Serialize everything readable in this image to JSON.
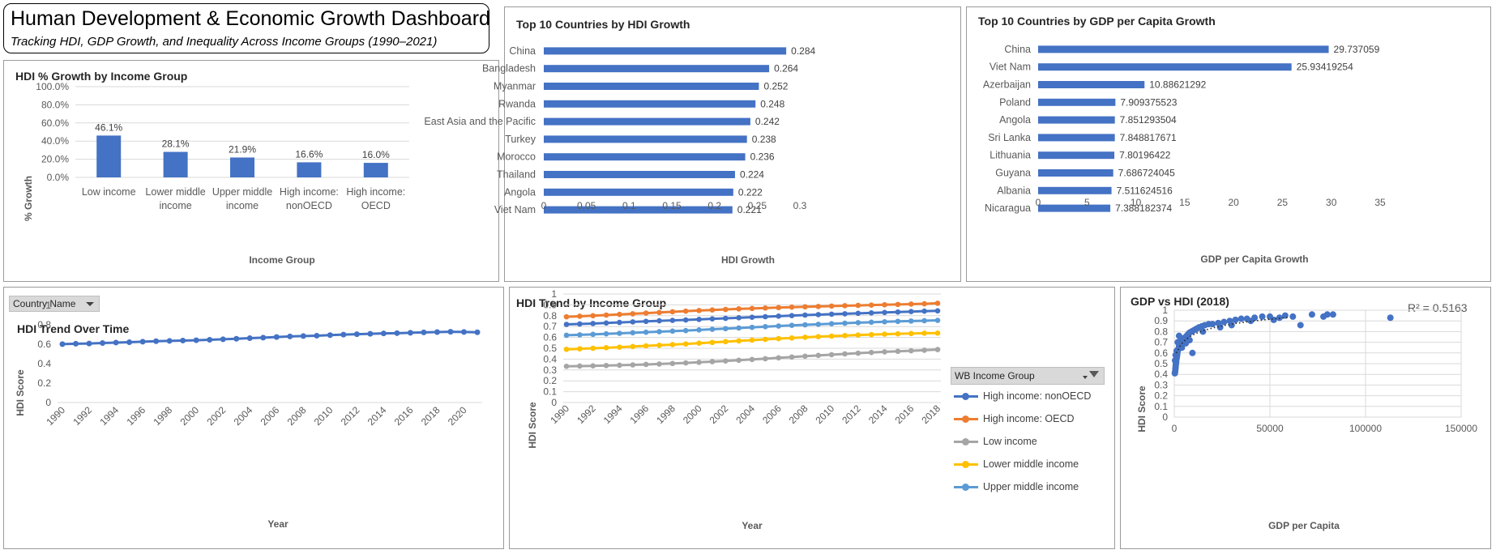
{
  "header": {
    "title": "Human Development & Economic Growth Dashboard",
    "subtitle": "Tracking HDI, GDP Growth, and Inequality Across Income Groups (1990–2021)"
  },
  "slicer": {
    "label": "Country Name"
  },
  "legend_filter": {
    "label": "WB Income Group"
  },
  "colors": {
    "blue": "#4472c4",
    "orange": "#ed7d31",
    "gray": "#a5a5a5",
    "yellow": "#ffc000",
    "lightblue": "#5b9bd5"
  },
  "chart_data": [
    {
      "id": "hdi-growth-income",
      "type": "bar",
      "title": "HDI % Growth by Income Group",
      "xlabel": "Income Group",
      "ylabel": "% Growth",
      "categories": [
        [
          "Low income"
        ],
        [
          "Lower middle",
          "income"
        ],
        [
          "Upper middle",
          "income"
        ],
        [
          "High income:",
          "nonOECD"
        ],
        [
          "High income:",
          "OECD"
        ]
      ],
      "values": [
        46.1,
        28.1,
        21.9,
        16.6,
        16.0
      ],
      "data_labels": [
        "46.1%",
        "28.1%",
        "21.9%",
        "16.6%",
        "16.0%"
      ],
      "yticks": [
        "0.0%",
        "20.0%",
        "40.0%",
        "60.0%",
        "80.0%",
        "100.0%"
      ],
      "ylim": [
        0,
        100
      ],
      "grid": true
    },
    {
      "id": "top10-hdi",
      "type": "bar",
      "orientation": "horizontal",
      "title": "Top 10 Countries by HDI Growth",
      "xlabel": "HDI Growth",
      "categories": [
        "China",
        "Bangladesh",
        "Myanmar",
        "Rwanda",
        "East Asia and the Pacific",
        "Turkey",
        "Morocco",
        "Thailand",
        "Angola",
        "Viet Nam"
      ],
      "values": [
        0.284,
        0.264,
        0.252,
        0.248,
        0.242,
        0.238,
        0.236,
        0.224,
        0.222,
        0.221
      ],
      "data_labels": [
        "0.284",
        "0.264",
        "0.252",
        "0.248",
        "0.242",
        "0.238",
        "0.236",
        "0.224",
        "0.222",
        "0.221"
      ],
      "xticks": [
        "0",
        "0.05",
        "0.1",
        "0.15",
        "0.2",
        "0.25",
        "0.3"
      ],
      "xlim": [
        0,
        0.3
      ]
    },
    {
      "id": "top10-gdp",
      "type": "bar",
      "orientation": "horizontal",
      "title": "Top 10 Countries by GDP per Capita Growth",
      "xlabel": "GDP per Capita Growth",
      "categories": [
        "China",
        "Viet Nam",
        "Azerbaijan",
        "Poland",
        "Angola",
        "Sri Lanka",
        "Lithuania",
        "Guyana",
        "Albania",
        "Nicaragua"
      ],
      "values": [
        29.737059,
        25.93419254,
        10.88621292,
        7.909375523,
        7.851293504,
        7.848817671,
        7.80196422,
        7.686724045,
        7.511624516,
        7.388182374
      ],
      "data_labels": [
        "29.737059",
        "25.93419254",
        "10.88621292",
        "7.909375523",
        "7.851293504",
        "7.848817671",
        "7.80196422",
        "7.686724045",
        "7.511624516",
        "7.388182374"
      ],
      "xticks": [
        "0",
        "5",
        "10",
        "15",
        "20",
        "25",
        "30",
        "35"
      ],
      "xlim": [
        0,
        35
      ]
    },
    {
      "id": "hdi-trend",
      "type": "line",
      "title": "HDI Trend Over Time",
      "xlabel": "Year",
      "ylabel": "HDI Score",
      "x": [
        1990,
        1991,
        1992,
        1993,
        1994,
        1995,
        1996,
        1997,
        1998,
        1999,
        2000,
        2001,
        2002,
        2003,
        2004,
        2005,
        2006,
        2007,
        2008,
        2009,
        2010,
        2011,
        2012,
        2013,
        2014,
        2015,
        2016,
        2017,
        2018,
        2019,
        2020,
        2021
      ],
      "values": [
        0.601,
        0.605,
        0.607,
        0.612,
        0.617,
        0.621,
        0.626,
        0.631,
        0.634,
        0.638,
        0.641,
        0.646,
        0.651,
        0.656,
        0.662,
        0.668,
        0.674,
        0.68,
        0.684,
        0.688,
        0.694,
        0.699,
        0.703,
        0.707,
        0.711,
        0.714,
        0.718,
        0.722,
        0.725,
        0.728,
        0.726,
        0.723
      ],
      "xticks": [
        "1990",
        "1992",
        "1994",
        "1996",
        "1998",
        "2000",
        "2002",
        "2004",
        "2006",
        "2008",
        "2010",
        "2012",
        "2014",
        "2016",
        "2018",
        "2020"
      ],
      "yticks": [
        "0",
        "0.2",
        "0.4",
        "0.6",
        "0.8",
        "1"
      ],
      "ylim": [
        0,
        1
      ]
    },
    {
      "id": "hdi-trend-income",
      "type": "line",
      "title": "HDI Trend by Income Group",
      "xlabel": "Year",
      "ylabel": "HDI Score",
      "x": [
        1990,
        1991,
        1992,
        1993,
        1994,
        1995,
        1996,
        1997,
        1998,
        1999,
        2000,
        2001,
        2002,
        2003,
        2004,
        2005,
        2006,
        2007,
        2008,
        2009,
        2010,
        2011,
        2012,
        2013,
        2014,
        2015,
        2016,
        2017,
        2018
      ],
      "series": [
        {
          "name": "High income: nonOECD",
          "color": "#4472c4",
          "values": [
            0.72,
            0.724,
            0.728,
            0.733,
            0.738,
            0.743,
            0.748,
            0.753,
            0.757,
            0.761,
            0.766,
            0.771,
            0.776,
            0.781,
            0.786,
            0.791,
            0.796,
            0.801,
            0.806,
            0.81,
            0.814,
            0.818,
            0.822,
            0.826,
            0.83,
            0.834,
            0.838,
            0.842,
            0.845
          ]
        },
        {
          "name": "High income: OECD",
          "color": "#ed7d31",
          "values": [
            0.79,
            0.795,
            0.8,
            0.806,
            0.812,
            0.818,
            0.824,
            0.83,
            0.836,
            0.842,
            0.848,
            0.853,
            0.858,
            0.863,
            0.867,
            0.871,
            0.875,
            0.879,
            0.882,
            0.885,
            0.889,
            0.892,
            0.895,
            0.898,
            0.901,
            0.904,
            0.907,
            0.91,
            0.915
          ]
        },
        {
          "name": "Low income",
          "color": "#a5a5a5",
          "values": [
            0.334,
            0.336,
            0.338,
            0.341,
            0.344,
            0.347,
            0.351,
            0.355,
            0.36,
            0.365,
            0.371,
            0.377,
            0.383,
            0.39,
            0.397,
            0.404,
            0.412,
            0.419,
            0.427,
            0.434,
            0.441,
            0.448,
            0.455,
            0.461,
            0.467,
            0.472,
            0.477,
            0.482,
            0.488
          ]
        },
        {
          "name": "Lower middle income",
          "color": "#ffc000",
          "values": [
            0.49,
            0.495,
            0.5,
            0.505,
            0.51,
            0.516,
            0.522,
            0.528,
            0.534,
            0.54,
            0.547,
            0.554,
            0.561,
            0.568,
            0.575,
            0.582,
            0.589,
            0.595,
            0.601,
            0.607,
            0.612,
            0.617,
            0.622,
            0.626,
            0.63,
            0.633,
            0.636,
            0.639,
            0.64
          ]
        },
        {
          "name": "Upper middle income",
          "color": "#5b9bd5",
          "values": [
            0.62,
            0.624,
            0.628,
            0.633,
            0.638,
            0.643,
            0.648,
            0.653,
            0.658,
            0.663,
            0.669,
            0.675,
            0.681,
            0.687,
            0.693,
            0.699,
            0.705,
            0.711,
            0.716,
            0.721,
            0.726,
            0.731,
            0.736,
            0.74,
            0.744,
            0.748,
            0.751,
            0.754,
            0.757
          ]
        }
      ],
      "xticks": [
        "1990",
        "1992",
        "1994",
        "1996",
        "1998",
        "2000",
        "2002",
        "2004",
        "2006",
        "2008",
        "2010",
        "2012",
        "2014",
        "2016",
        "2018"
      ],
      "yticks": [
        "0",
        "0.1",
        "0.2",
        "0.3",
        "0.4",
        "0.5",
        "0.6",
        "0.7",
        "0.8",
        "0.9",
        "1"
      ],
      "ylim": [
        0,
        1
      ],
      "legend": "right"
    },
    {
      "id": "gdp-vs-hdi",
      "type": "scatter",
      "title": "GDP vs HDI (2018)",
      "xlabel": "GDP per Capita",
      "ylabel": "HDI Score",
      "annotation": "R² = 0.5163",
      "xticks": [
        "0",
        "50000",
        "100000",
        "150000"
      ],
      "yticks": [
        "0",
        "0.1",
        "0.2",
        "0.3",
        "0.4",
        "0.5",
        "0.6",
        "0.7",
        "0.8",
        "0.9",
        "1"
      ],
      "xlim": [
        0,
        150000
      ],
      "ylim": [
        0,
        1
      ],
      "trendline": "logarithmic",
      "points": [
        [
          300,
          0.41
        ],
        [
          500,
          0.43
        ],
        [
          600,
          0.45
        ],
        [
          700,
          0.47
        ],
        [
          800,
          0.49
        ],
        [
          900,
          0.51
        ],
        [
          1000,
          0.52
        ],
        [
          1100,
          0.54
        ],
        [
          1200,
          0.55
        ],
        [
          1300,
          0.56
        ],
        [
          1500,
          0.58
        ],
        [
          1600,
          0.6
        ],
        [
          1800,
          0.62
        ],
        [
          2000,
          0.63
        ],
        [
          2200,
          0.64
        ],
        [
          2500,
          0.66
        ],
        [
          2800,
          0.67
        ],
        [
          3000,
          0.68
        ],
        [
          3300,
          0.69
        ],
        [
          3600,
          0.7
        ],
        [
          4000,
          0.71
        ],
        [
          4500,
          0.72
        ],
        [
          5000,
          0.73
        ],
        [
          5500,
          0.74
        ],
        [
          6000,
          0.75
        ],
        [
          6500,
          0.76
        ],
        [
          7000,
          0.77
        ],
        [
          7500,
          0.78
        ],
        [
          8000,
          0.79
        ],
        [
          9000,
          0.8
        ],
        [
          10000,
          0.81
        ],
        [
          11000,
          0.82
        ],
        [
          12000,
          0.83
        ],
        [
          13000,
          0.84
        ],
        [
          14500,
          0.85
        ],
        [
          16000,
          0.86
        ],
        [
          18000,
          0.87
        ],
        [
          20000,
          0.87
        ],
        [
          23000,
          0.88
        ],
        [
          26000,
          0.89
        ],
        [
          29000,
          0.9
        ],
        [
          32000,
          0.91
        ],
        [
          35000,
          0.92
        ],
        [
          38000,
          0.92
        ],
        [
          42000,
          0.93
        ],
        [
          46000,
          0.94
        ],
        [
          50000,
          0.94
        ],
        [
          55000,
          0.93
        ],
        [
          58000,
          0.95
        ],
        [
          62000,
          0.94
        ],
        [
          66000,
          0.86
        ],
        [
          72000,
          0.96
        ],
        [
          78000,
          0.94
        ],
        [
          80000,
          0.96
        ],
        [
          83000,
          0.96
        ],
        [
          113000,
          0.93
        ],
        [
          4000,
          0.65
        ],
        [
          6000,
          0.69
        ],
        [
          8000,
          0.72
        ],
        [
          3500,
          0.74
        ],
        [
          2500,
          0.76
        ],
        [
          1800,
          0.7
        ],
        [
          1200,
          0.62
        ],
        [
          700,
          0.58
        ],
        [
          400,
          0.53
        ],
        [
          9500,
          0.6
        ],
        [
          15000,
          0.8
        ],
        [
          24000,
          0.84
        ],
        [
          30000,
          0.86
        ],
        [
          40000,
          0.9
        ],
        [
          52000,
          0.91
        ]
      ]
    }
  ]
}
